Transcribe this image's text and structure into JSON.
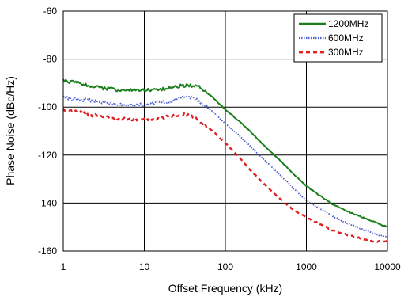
{
  "chart_data": {
    "type": "line",
    "xlabel": "Offset Frequency (kHz)",
    "ylabel": "Phase Noise (dBc/Hz)",
    "xscale": "log",
    "xlim": [
      1,
      10000
    ],
    "ylim": [
      -160,
      -60
    ],
    "xticks": [
      1,
      10,
      100,
      1000,
      10000
    ],
    "xtick_labels": [
      "1",
      "10",
      "100",
      "1000",
      "10000"
    ],
    "yticks": [
      -60,
      -80,
      -100,
      -120,
      -140,
      -160
    ],
    "ytick_labels": [
      "-60",
      "-80",
      "-100",
      "-120",
      "-140",
      "-160"
    ],
    "grid": true,
    "legend_position": "top-right",
    "series": [
      {
        "name": "1200MHz",
        "color": "#1a7f1a",
        "style": "solid",
        "x": [
          1,
          1.5,
          2,
          3,
          5,
          7,
          10,
          15,
          20,
          30,
          40,
          50,
          70,
          100,
          150,
          200,
          300,
          500,
          700,
          1000,
          2000,
          3000,
          5000,
          7000,
          10000
        ],
        "y": [
          -89,
          -90,
          -91,
          -92,
          -93,
          -93,
          -93,
          -93,
          -92,
          -91,
          -91,
          -92,
          -96,
          -101,
          -106,
          -110,
          -116,
          -123,
          -128,
          -133,
          -140,
          -143,
          -146,
          -148,
          -150
        ]
      },
      {
        "name": "600MHz",
        "color": "#4b5fd6",
        "style": "dotted",
        "x": [
          1,
          1.5,
          2,
          3,
          5,
          7,
          10,
          15,
          20,
          30,
          40,
          50,
          70,
          100,
          150,
          200,
          300,
          500,
          700,
          1000,
          2000,
          3000,
          5000,
          7000,
          10000
        ],
        "y": [
          -96,
          -97,
          -97,
          -98,
          -99,
          -99,
          -99,
          -98,
          -98,
          -96,
          -96,
          -98,
          -102,
          -107,
          -112,
          -116,
          -122,
          -129,
          -134,
          -139,
          -145,
          -148,
          -151,
          -153,
          -154
        ]
      },
      {
        "name": "300MHz",
        "color": "#e02020",
        "style": "dashed",
        "x": [
          1,
          1.5,
          2,
          3,
          5,
          7,
          10,
          15,
          20,
          30,
          40,
          50,
          70,
          100,
          150,
          200,
          300,
          500,
          700,
          1000,
          2000,
          3000,
          5000,
          7000,
          10000
        ],
        "y": [
          -101,
          -102,
          -103,
          -104,
          -105,
          -105,
          -105,
          -105,
          -104,
          -103,
          -104,
          -106,
          -110,
          -115,
          -121,
          -126,
          -132,
          -139,
          -143,
          -146,
          -151,
          -153,
          -155,
          -156,
          -156
        ]
      }
    ]
  }
}
